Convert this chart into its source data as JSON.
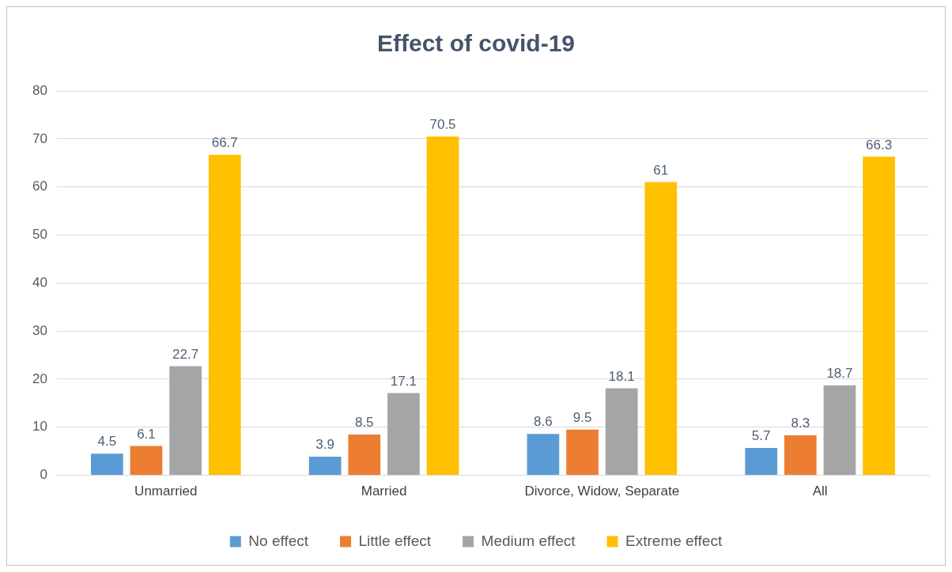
{
  "chart_data": {
    "type": "bar",
    "title": "Effect of covid-19",
    "categories": [
      "Unmarried",
      "Married",
      "Divorce, Widow, Separate",
      "All"
    ],
    "series": [
      {
        "name": "No effect",
        "color": "#5b9bd5",
        "values": [
          4.5,
          3.9,
          8.6,
          5.7
        ]
      },
      {
        "name": "Little effect",
        "color": "#ed7d31",
        "values": [
          6.1,
          8.5,
          9.5,
          8.3
        ]
      },
      {
        "name": "Medium effect",
        "color": "#a5a5a5",
        "values": [
          22.7,
          17.1,
          18.1,
          18.7
        ]
      },
      {
        "name": "Extreme effect",
        "color": "#ffc000",
        "values": [
          66.7,
          70.5,
          61,
          66.3
        ]
      }
    ],
    "ylim": [
      0,
      80
    ],
    "yticks": [
      0,
      10,
      20,
      30,
      40,
      50,
      60,
      70,
      80
    ],
    "grid": "y",
    "legend": "bottom",
    "data_labels": true
  }
}
